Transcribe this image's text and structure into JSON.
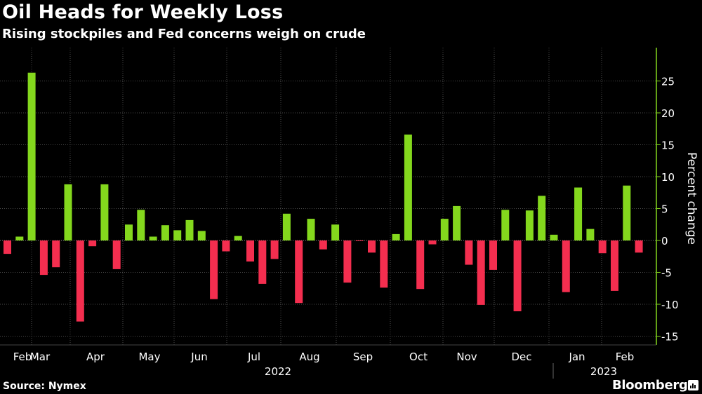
{
  "chart_data": {
    "type": "bar",
    "title": "Oil Heads for Weekly Loss",
    "subtitle": "Rising stockpiles and Fed concerns weigh on crude",
    "ylabel": "Percent change",
    "ylim": [
      -16,
      30
    ],
    "yticks": [
      -15,
      -10,
      -5,
      0,
      5,
      10,
      15,
      20,
      25
    ],
    "grid": true,
    "month_labels": [
      "Feb",
      "Mar",
      "Apr",
      "May",
      "Jun",
      "Jul",
      "Aug",
      "Sep",
      "Oct",
      "Nov",
      "Dec",
      "Jan",
      "Feb"
    ],
    "year_labels": [
      "2022",
      "2023"
    ],
    "colors": {
      "positive": "#84d81d",
      "negative": "#f42e4f",
      "grid": "#4a4a4a",
      "axis": "#84d81d"
    },
    "values": [
      -2.1,
      0.6,
      26.3,
      -5.4,
      -4.2,
      8.8,
      -12.7,
      -0.9,
      8.8,
      -4.5,
      2.5,
      4.8,
      0.6,
      2.4,
      1.6,
      3.2,
      1.5,
      -9.2,
      -1.7,
      0.7,
      -3.3,
      -6.8,
      -2.9,
      4.2,
      -9.8,
      3.4,
      -1.4,
      2.5,
      -6.6,
      -0.1,
      -1.9,
      -7.4,
      1.0,
      16.6,
      -7.6,
      -0.6,
      3.4,
      5.4,
      -3.8,
      -10.1,
      -4.6,
      4.8,
      -11.1,
      4.7,
      7.0,
      0.9,
      -8.1,
      8.3,
      1.8,
      -2.0,
      -7.9,
      8.6,
      -1.9
    ]
  },
  "footer": {
    "source": "Source: Nymex",
    "brand": "Bloomberg",
    "brand_icon": "bloomberg-terminal-icon"
  }
}
